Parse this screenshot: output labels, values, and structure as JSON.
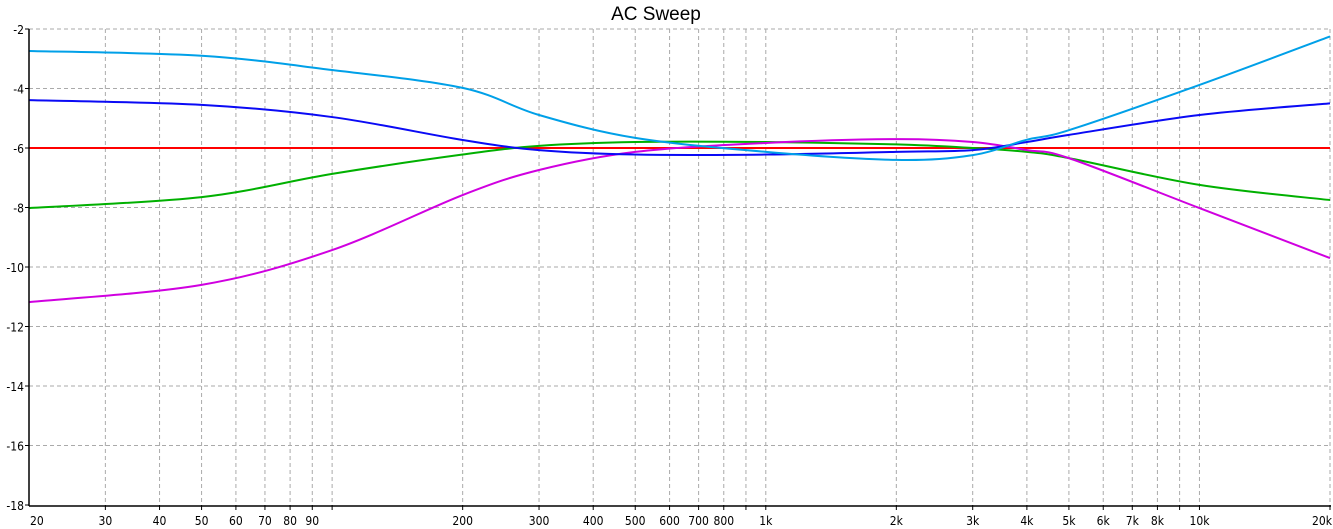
{
  "chart_data": {
    "type": "line",
    "title": "AC Sweep",
    "xlabel": "",
    "ylabel": "",
    "x_scale": "log",
    "xlim": [
      20,
      20000
    ],
    "ylim": [
      -18,
      -2
    ],
    "grid": true,
    "x_tick_labels": [
      {
        "value": 20,
        "label": "20"
      },
      {
        "value": 30,
        "label": "30"
      },
      {
        "value": 40,
        "label": "40"
      },
      {
        "value": 50,
        "label": "50"
      },
      {
        "value": 60,
        "label": "60"
      },
      {
        "value": 70,
        "label": "70"
      },
      {
        "value": 80,
        "label": "80"
      },
      {
        "value": 90,
        "label": "90"
      },
      {
        "value": 200,
        "label": "200"
      },
      {
        "value": 300,
        "label": "300"
      },
      {
        "value": 400,
        "label": "400"
      },
      {
        "value": 500,
        "label": "500"
      },
      {
        "value": 600,
        "label": "600"
      },
      {
        "value": 700,
        "label": "700"
      },
      {
        "value": 800,
        "label": "800"
      },
      {
        "value": 1000,
        "label": "1k"
      },
      {
        "value": 2000,
        "label": "2k"
      },
      {
        "value": 3000,
        "label": "3k"
      },
      {
        "value": 4000,
        "label": "4k"
      },
      {
        "value": 5000,
        "label": "5k"
      },
      {
        "value": 6000,
        "label": "6k"
      },
      {
        "value": 7000,
        "label": "7k"
      },
      {
        "value": 8000,
        "label": "8k"
      },
      {
        "value": 10000,
        "label": "10k"
      },
      {
        "value": 20000,
        "label": "20k"
      }
    ],
    "y_ticks": [
      -2,
      -4,
      -6,
      -8,
      -10,
      -12,
      -14,
      -16,
      -18
    ],
    "y_tick_labels": [
      "-2",
      "-4",
      "-6",
      "-8",
      "-10",
      "-12",
      "-14",
      "-16",
      "-18"
    ],
    "x": [
      20,
      50,
      100,
      200,
      300,
      500,
      1000,
      2000,
      3000,
      4000,
      5000,
      10000,
      20000
    ],
    "series": [
      {
        "color": "#ff0000",
        "values": [
          -6,
          -6,
          -6,
          -6,
          -6,
          -6,
          -6,
          -6,
          -6,
          -6,
          -6,
          -6,
          -6
        ]
      },
      {
        "color": "#00b000",
        "values": [
          -8.02,
          -7.65,
          -6.87,
          -6.22,
          -5.93,
          -5.8,
          -5.8,
          -5.88,
          -6.0,
          -6.13,
          -6.34,
          -7.24,
          -7.75
        ]
      },
      {
        "color": "#d000e0",
        "values": [
          -11.18,
          -10.6,
          -9.43,
          -7.58,
          -6.74,
          -6.13,
          -5.83,
          -5.7,
          -5.8,
          -6.07,
          -6.34,
          -8.02,
          -9.7
        ]
      },
      {
        "color": "#0a0af5",
        "values": [
          -4.39,
          -4.55,
          -4.96,
          -5.73,
          -6.07,
          -6.22,
          -6.22,
          -6.13,
          -6.07,
          -5.8,
          -5.56,
          -4.89,
          -4.5
        ]
      },
      {
        "color": "#00a0e8",
        "values": [
          -2.74,
          -2.9,
          -3.38,
          -3.98,
          -4.89,
          -5.66,
          -6.13,
          -6.4,
          -6.24,
          -5.72,
          -5.4,
          -3.88,
          -2.25
        ]
      }
    ]
  }
}
